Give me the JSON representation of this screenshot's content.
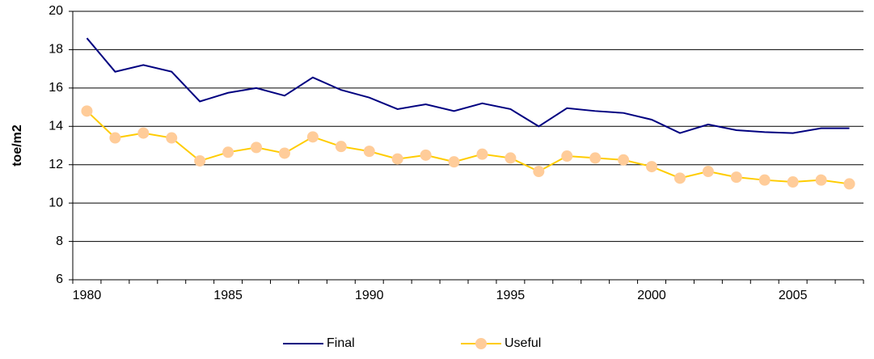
{
  "chart_data": {
    "type": "line",
    "ylabel": "toe/m2",
    "categories": [
      "1980",
      null,
      null,
      null,
      null,
      "1985",
      null,
      null,
      null,
      null,
      "1990",
      null,
      null,
      null,
      null,
      "1995",
      null,
      null,
      null,
      null,
      "2000",
      null,
      null,
      null,
      null,
      "2005",
      null,
      null
    ],
    "series": [
      {
        "name": "Final",
        "color": "#000080",
        "marker": "none",
        "values": [
          18.6,
          16.85,
          17.2,
          16.85,
          15.3,
          15.75,
          16.0,
          15.6,
          16.55,
          15.9,
          15.5,
          14.9,
          15.15,
          14.8,
          15.2,
          14.9,
          14.0,
          14.95,
          14.8,
          14.7,
          14.35,
          13.65,
          14.1,
          13.8,
          13.7,
          13.65,
          13.9,
          13.9
        ]
      },
      {
        "name": "Useful",
        "color": "#ffcc00",
        "marker": "circle",
        "marker_color": "#ffcc99",
        "values": [
          14.8,
          13.4,
          13.65,
          13.4,
          12.2,
          12.65,
          12.9,
          12.6,
          13.45,
          12.95,
          12.7,
          12.3,
          12.5,
          12.15,
          12.55,
          12.35,
          11.65,
          12.45,
          12.35,
          12.25,
          11.9,
          11.3,
          11.65,
          11.35,
          11.2,
          11.1,
          11.2,
          11.0
        ]
      }
    ],
    "ylim": [
      6,
      20
    ],
    "yticks": [
      6,
      8,
      10,
      12,
      14,
      16,
      18,
      20
    ],
    "grid": true,
    "legend": "bottom"
  }
}
